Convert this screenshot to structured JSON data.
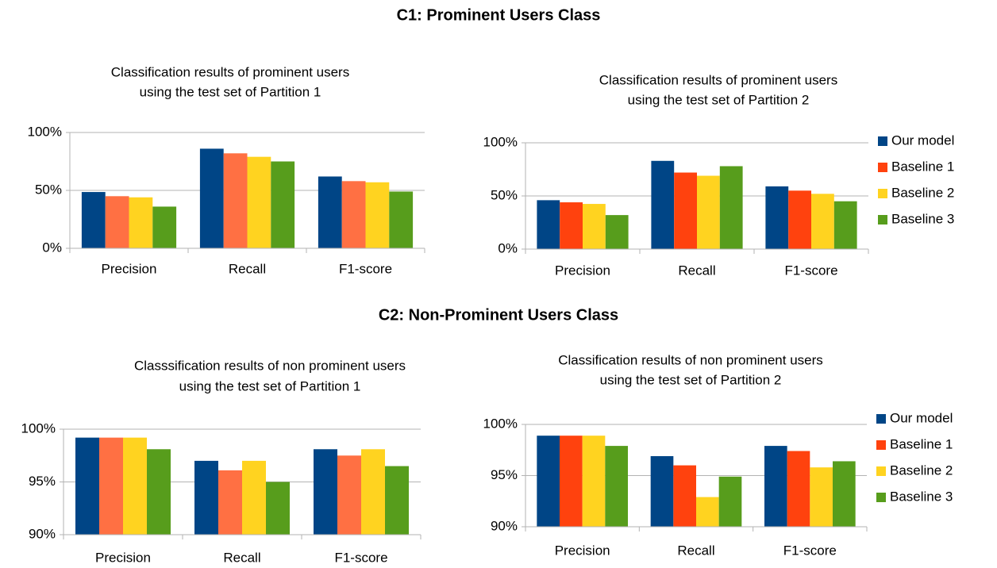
{
  "headings": [
    "C1: Prominent Users Class",
    "C2: Non-Prominent Users Class"
  ],
  "chart_data": [
    {
      "type": "bar",
      "title": "Classification results of prominent users",
      "subtitle": "using the test set of Partition 1",
      "categories": [
        "Precision",
        "Recall",
        "F1-score"
      ],
      "series": [
        {
          "color": "#004586",
          "values": [
            48.6,
            86,
            62
          ]
        },
        {
          "color": "#ff7043",
          "values": [
            45,
            82,
            58
          ]
        },
        {
          "color": "#ffd320",
          "values": [
            44,
            79,
            57
          ]
        },
        {
          "color": "#579d1c",
          "values": [
            36,
            75,
            49
          ]
        }
      ],
      "ylim": [
        0,
        100
      ],
      "yticks": [
        {
          "value": 0,
          "label": "0%"
        },
        {
          "value": 50,
          "label": "50%"
        },
        {
          "value": 100,
          "label": "100%"
        }
      ],
      "grid": true
    },
    {
      "type": "bar",
      "title": "Classification results of prominent users",
      "subtitle": "using the test set of Partition 2",
      "categories": [
        "Precision",
        "Recall",
        "F1-score"
      ],
      "series": [
        {
          "name": "Our model",
          "color": "#004586",
          "values": [
            46,
            83,
            59
          ]
        },
        {
          "name": "Baseline 1",
          "color": "#ff420e",
          "values": [
            44,
            72,
            55
          ]
        },
        {
          "name": "Baseline 2",
          "color": "#ffd320",
          "values": [
            42.5,
            69,
            52
          ]
        },
        {
          "name": "Baseline 3",
          "color": "#579d1c",
          "values": [
            32,
            78,
            45
          ]
        }
      ],
      "ylim": [
        0,
        100
      ],
      "yticks": [
        {
          "value": 0,
          "label": "0%"
        },
        {
          "value": 50,
          "label": "50%"
        },
        {
          "value": 100,
          "label": "100%"
        }
      ],
      "grid": true,
      "legend": "right"
    },
    {
      "type": "bar",
      "title": "Classsification results of non prominent users",
      "subtitle": "using the test set of Partition 1",
      "categories": [
        "Precision",
        "Recall",
        "F1-score"
      ],
      "series": [
        {
          "color": "#004586",
          "values": [
            99.2,
            97,
            98.1
          ]
        },
        {
          "color": "#ff7043",
          "values": [
            99.2,
            96.1,
            97.5
          ]
        },
        {
          "color": "#ffd320",
          "values": [
            99.2,
            97,
            98.1
          ]
        },
        {
          "color": "#579d1c",
          "values": [
            98.1,
            95,
            96.5
          ]
        }
      ],
      "ylim": [
        90,
        100
      ],
      "yticks": [
        {
          "value": 90,
          "label": "90%"
        },
        {
          "value": 95,
          "label": "95%"
        },
        {
          "value": 100,
          "label": "100%"
        }
      ],
      "grid": true
    },
    {
      "type": "bar",
      "title": "Classification results of non prominent users",
      "subtitle": "using the test set of Partition 2",
      "categories": [
        "Precision",
        "Recall",
        "F1-score"
      ],
      "series": [
        {
          "name": "Our model",
          "color": "#004586",
          "values": [
            98.9,
            96.9,
            97.9
          ]
        },
        {
          "name": "Baseline 1",
          "color": "#ff420e",
          "values": [
            98.9,
            96,
            97.4
          ]
        },
        {
          "name": "Baseline 2",
          "color": "#ffd320",
          "values": [
            98.9,
            92.9,
            95.8
          ]
        },
        {
          "name": "Baseline 3",
          "color": "#579d1c",
          "values": [
            97.9,
            94.9,
            96.4
          ]
        }
      ],
      "ylim": [
        90,
        100
      ],
      "yticks": [
        {
          "value": 90,
          "label": "90%"
        },
        {
          "value": 95,
          "label": "95%"
        },
        {
          "value": 100,
          "label": "100%"
        }
      ],
      "grid": true,
      "legend": "right"
    }
  ]
}
